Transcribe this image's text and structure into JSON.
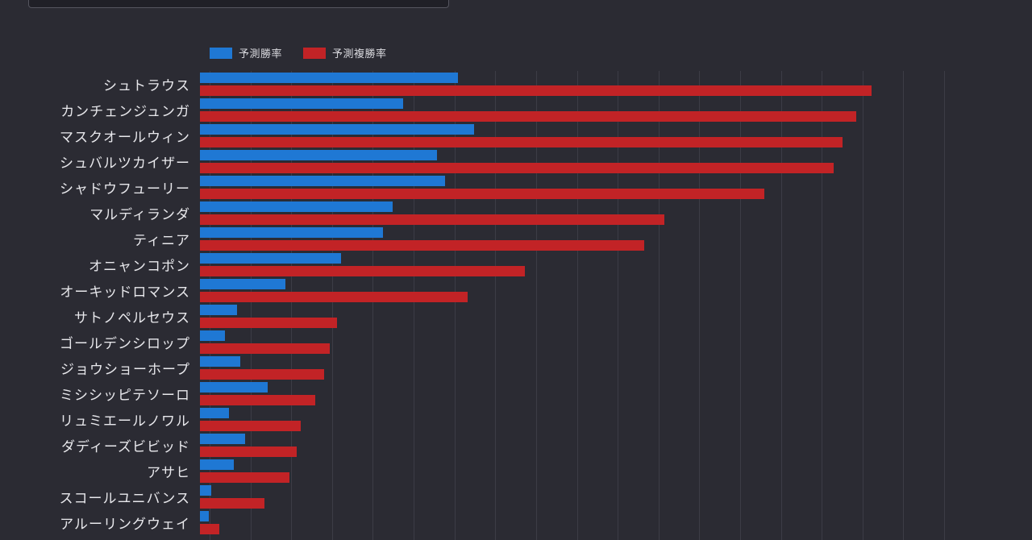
{
  "page": {
    "background": "#2b2b33"
  },
  "top_box": {
    "note": "partially visible element cut off at top of viewport"
  },
  "legend": {
    "items": [
      {
        "label": "予測勝率",
        "color": "#1f78d4"
      },
      {
        "label": "予測複勝率",
        "color": "#c22326"
      }
    ]
  },
  "chart_data": {
    "type": "bar",
    "orientation": "horizontal",
    "title": "",
    "xlabel": "",
    "ylabel": "",
    "xlim": [
      0,
      90
    ],
    "grid_interval": 5,
    "grid": true,
    "legend_position": "top-left",
    "categories": [
      "シュトラウス",
      "カンチェンジュンガ",
      "マスクオールウィン",
      "シュバルツカイザー",
      "シャドウフューリー",
      "マルディランダ",
      "ティニア",
      "オニャンコポン",
      "オーキッドロマンス",
      "サトノペルセウス",
      "ゴールデンシロップ",
      "ジョウショーホープ",
      "ミシシッピテソーロ",
      "リュミエールノワル",
      "ダディーズビビッド",
      "アサヒ",
      "スコールユニバンス",
      "アルーリングウェイ"
    ],
    "series": [
      {
        "name": "予測勝率",
        "color": "#1f78d4",
        "values": [
          31.6,
          24.9,
          33.6,
          29.0,
          30.0,
          23.6,
          22.4,
          17.3,
          10.5,
          4.5,
          3.1,
          4.9,
          8.3,
          3.6,
          5.5,
          4.1,
          1.4,
          1.1
        ]
      },
      {
        "name": "予測複勝率",
        "color": "#c22326",
        "values": [
          82.3,
          80.4,
          78.7,
          77.7,
          69.2,
          56.9,
          54.4,
          39.8,
          32.8,
          16.8,
          15.9,
          15.2,
          14.1,
          12.3,
          11.9,
          11.0,
          7.9,
          2.4
        ]
      }
    ]
  }
}
